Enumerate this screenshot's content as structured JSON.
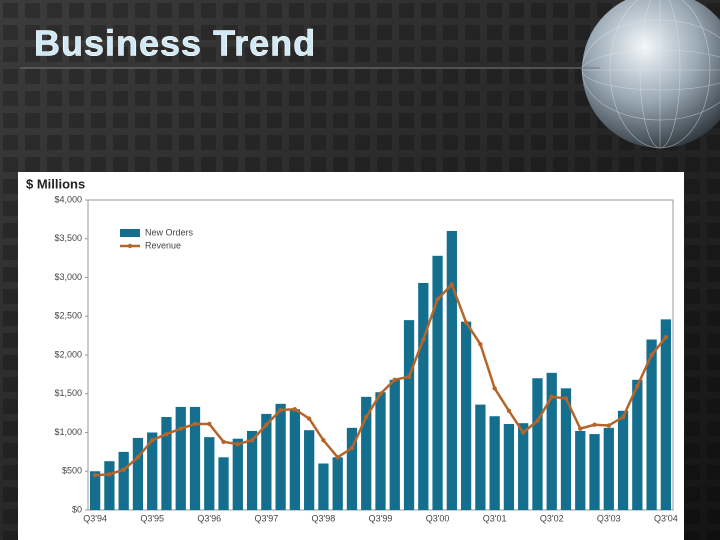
{
  "slide": {
    "title": "Business Trend"
  },
  "chart_data": {
    "type": "bar-line",
    "ylabel": "$ Millions",
    "categories": [
      "Q3'94",
      null,
      null,
      null,
      "Q3'95",
      null,
      null,
      null,
      "Q3'96",
      null,
      null,
      null,
      "Q3'97",
      null,
      null,
      null,
      "Q3'98",
      null,
      null,
      null,
      "Q3'99",
      null,
      null,
      null,
      "Q3'00",
      null,
      null,
      null,
      "Q3'01",
      null,
      null,
      null,
      "Q3'02",
      null,
      null,
      null,
      "Q3'03",
      null,
      null,
      null,
      "Q3'04"
    ],
    "series": [
      {
        "name": "New Orders",
        "kind": "bar",
        "color": "#146f8f",
        "values": [
          500,
          630,
          750,
          930,
          1000,
          1200,
          1330,
          1330,
          940,
          680,
          920,
          1020,
          1240,
          1370,
          1300,
          1030,
          600,
          680,
          1060,
          1460,
          1520,
          1680,
          2450,
          2930,
          3280,
          3600,
          2430,
          1360,
          1210,
          1110,
          1120,
          1700,
          1770,
          1570,
          1020,
          980,
          1060,
          1280,
          1680,
          2200,
          2460
        ]
      },
      {
        "name": "Revenue",
        "kind": "line",
        "color": "#b5652a",
        "values": [
          450,
          460,
          520,
          680,
          900,
          980,
          1050,
          1110,
          1110,
          880,
          850,
          900,
          1100,
          1290,
          1300,
          1180,
          900,
          680,
          800,
          1200,
          1500,
          1680,
          1720,
          2200,
          2720,
          2910,
          2420,
          2140,
          1570,
          1280,
          1000,
          1150,
          1460,
          1440,
          1050,
          1100,
          1090,
          1200,
          1600,
          2000,
          2230
        ]
      }
    ],
    "ylim": [
      0,
      4000
    ],
    "yticks": [
      {
        "value": 0,
        "label": "$0"
      },
      {
        "value": 500,
        "label": "$500"
      },
      {
        "value": 1000,
        "label": "$1,000"
      },
      {
        "value": 1500,
        "label": "$1,500"
      },
      {
        "value": 2000,
        "label": "$2,000"
      },
      {
        "value": 2500,
        "label": "$2,500"
      },
      {
        "value": 3000,
        "label": "$3,000"
      },
      {
        "value": 3500,
        "label": "$3,500"
      },
      {
        "value": 4000,
        "label": "$4,000"
      }
    ],
    "grid": false,
    "legend": "top-left"
  }
}
